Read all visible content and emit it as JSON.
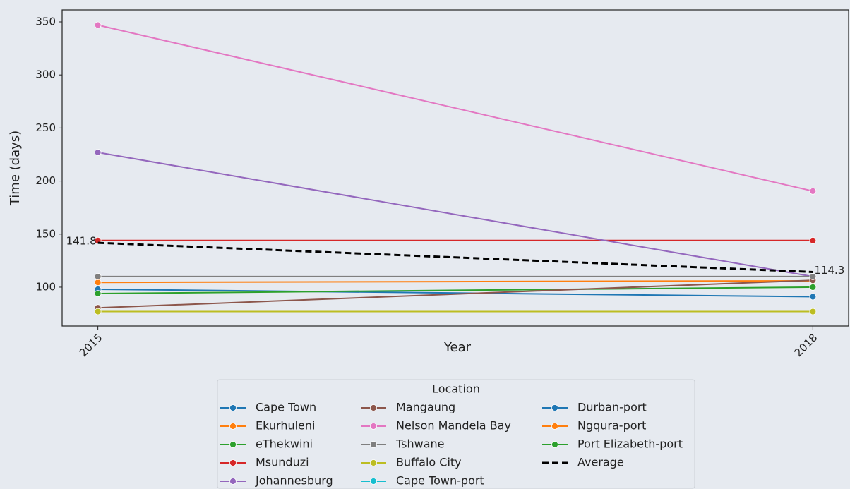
{
  "chart_data": {
    "type": "line",
    "x_label": "Year",
    "y_label": "Time (days)",
    "x": [
      2015,
      2018
    ],
    "xlim": [
      2014.85,
      2018.15
    ],
    "xticks": [
      2015,
      2018
    ],
    "ylim": [
      63.4,
      361.3
    ],
    "yticks": [
      100,
      150,
      200,
      250,
      300,
      350
    ],
    "legend_title": "Location",
    "series": [
      {
        "name": "Cape Town",
        "color": "#1f77b4",
        "values": [
          98,
          91
        ]
      },
      {
        "name": "Ekurhuleni",
        "color": "#ff7f0e",
        "values": [
          104.5,
          106
        ]
      },
      {
        "name": "eThekwini",
        "color": "#2ca02c",
        "values": [
          94,
          100
        ]
      },
      {
        "name": "Msunduzi",
        "color": "#d62728",
        "values": [
          144,
          144
        ]
      },
      {
        "name": "Johannesburg",
        "color": "#9467bd",
        "values": [
          227,
          110
        ]
      },
      {
        "name": "Mangaung",
        "color": "#8c564b",
        "values": [
          80.5,
          106.5
        ]
      },
      {
        "name": "Nelson Mandela Bay",
        "color": "#e377c2",
        "values": [
          347,
          190.5
        ]
      },
      {
        "name": "Tshwane",
        "color": "#7f7f7f",
        "values": [
          110,
          110
        ]
      },
      {
        "name": "Buffalo City",
        "color": "#bcbd22",
        "values": [
          77,
          77
        ]
      },
      {
        "name": "Cape Town-port",
        "color": "#17becf",
        "values": [
          null,
          null
        ]
      },
      {
        "name": "Durban-port",
        "color": "#1f77b4",
        "values": [
          null,
          null
        ]
      },
      {
        "name": "Ngqura-port",
        "color": "#ff7f0e",
        "values": [
          null,
          null
        ]
      },
      {
        "name": "Port Elizabeth-port",
        "color": "#2ca02c",
        "values": [
          null,
          null
        ]
      },
      {
        "name": "Average",
        "color": "#000000",
        "dashed": true,
        "values": [
          141.8,
          114.3
        ],
        "value_labels": [
          "141.8",
          "114.3"
        ]
      }
    ]
  }
}
